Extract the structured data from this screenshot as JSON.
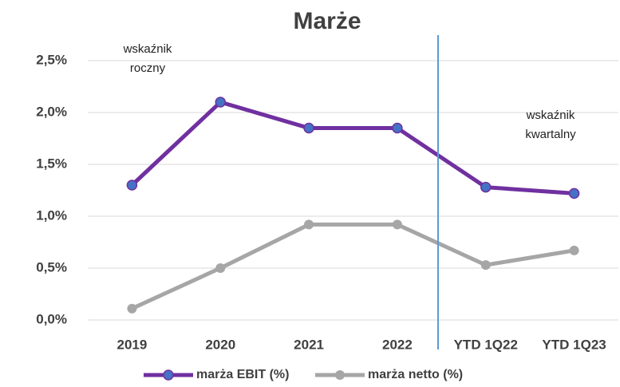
{
  "chart_data": {
    "type": "line",
    "title": "Marże",
    "categories": [
      "2019",
      "2020",
      "2021",
      "2022",
      "YTD 1Q22",
      "YTD 1Q23"
    ],
    "series": [
      {
        "name": "marża EBIT (%)",
        "color": "#7030a0",
        "marker_color": "#4472c4",
        "values": [
          1.3,
          2.1,
          1.85,
          1.85,
          1.28,
          1.22
        ]
      },
      {
        "name": "marża netto (%)",
        "color": "#a6a6a6",
        "marker_color": "#a6a6a6",
        "values": [
          0.11,
          0.5,
          0.92,
          0.92,
          0.53,
          0.67
        ]
      }
    ],
    "ylim": [
      0,
      2.5
    ],
    "yticks": [
      {
        "value": 0,
        "label": "0,0%"
      },
      {
        "value": 0.5,
        "label": "0,5%"
      },
      {
        "value": 1,
        "label": "1,0%"
      },
      {
        "value": 1.5,
        "label": "1,5%"
      },
      {
        "value": 2,
        "label": "2,0%"
      },
      {
        "value": 2.5,
        "label": "2,5%"
      }
    ],
    "grid": true,
    "legend": "bottom",
    "annotations": [
      [
        "wskaźnik",
        "roczny"
      ],
      [
        "wskaźnik",
        "kwartalny"
      ]
    ]
  }
}
